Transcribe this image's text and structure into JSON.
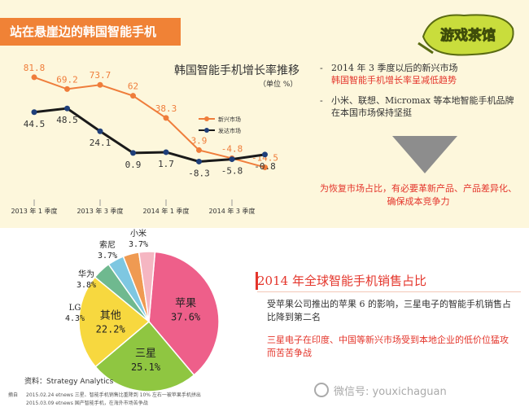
{
  "header": {
    "banner_title": "站在悬崖边的韩国智能手机",
    "logo_text": "游戏茶馆"
  },
  "colors": {
    "banner": "#f08236",
    "emerging": "#ef7d3b",
    "developed": "#1a1a1a",
    "accent_red": "#e4352b",
    "apple": "#ee5f8a",
    "samsung": "#8fc641",
    "others": "#f7d83f",
    "lg": "#6fb98f",
    "huawei": "#7ec7e1",
    "sony": "#ef9a52",
    "xiaomi": "#f5b6c2"
  },
  "chart_data": [
    {
      "type": "line",
      "title": "韩国智能手机增长率推移",
      "unit": "（单位 %）",
      "x_ticks": [
        "2013 年 1 季度",
        "2013 年 3 季度",
        "2014 年 1 季度",
        "2014 年 3 季度"
      ],
      "ylim": [
        -20,
        90
      ],
      "series": [
        {
          "name": "新兴市场",
          "values": [
            81.8,
            69.2,
            73.7,
            62,
            38.3,
            3.9,
            -4.8,
            -14.5
          ],
          "labels": [
            "81.8",
            "69.2",
            "73.7",
            "62",
            "38.3",
            "3.9",
            "-4.8",
            "-14.5"
          ]
        },
        {
          "name": "发达市场",
          "values": [
            44.5,
            48.5,
            24.1,
            0.9,
            1.7,
            -8.3,
            -5.8,
            -0.8
          ],
          "labels": [
            "44.5",
            "48.5",
            "24.1",
            "0.9",
            "1.7",
            "-8.3",
            "-5.8",
            "-0.8"
          ]
        }
      ],
      "legend": [
        "新兴市场",
        "发达市场"
      ],
      "legend_position": "right"
    },
    {
      "type": "pie",
      "title": "2014 年全球智能手机销售占比",
      "slices": [
        {
          "name": "苹果",
          "value": 37.6,
          "label": "37.6%"
        },
        {
          "name": "三星",
          "value": 25.1,
          "label": "25.1%"
        },
        {
          "name": "其他",
          "value": 22.2,
          "label": "22.2%"
        },
        {
          "name": "LG",
          "value": 4.3,
          "label": "4.3%"
        },
        {
          "name": "华为",
          "value": 3.8,
          "label": "3.8%"
        },
        {
          "name": "索尼",
          "value": 3.7,
          "label": "3.7%"
        },
        {
          "name": "小米",
          "value": 3.7,
          "label": "3.7%"
        }
      ]
    }
  ],
  "bullets": {
    "b1_line1": "2014 年 3 季度以后的新兴市场",
    "b1_line2": "韩国智能手机增长率呈减低趋势",
    "b2_line1": "小米、联想、Micromax 等本地智能手机品牌",
    "b2_line2": "在本国市场保持坚挺"
  },
  "conclusion": {
    "line1": "为恢复市场占比，有必要革新产品、产品差异化、",
    "line2": "确保成本竞争力"
  },
  "pie_section": {
    "title": "2014 年全球智能手机销售占比",
    "para1": "受苹果公司推出的苹果 6 的影响，三星电子的智能手机销售占比降到第二名",
    "para2": "三星电子在印度、中国等新兴市场受到本地企业的低价位猛攻而苦苦争战"
  },
  "source": "资料：Strategy Analytics",
  "excerpt": {
    "label": "摘自",
    "line1": "2015.02.24 etnews 三星、智能手机销售比重降到 10% 左右一被苹果手机拼出",
    "line2": "2015.03.09 etnews 国产智能手机，在海外市场苦争战"
  },
  "watermark": "微信号: youxichaguan"
}
